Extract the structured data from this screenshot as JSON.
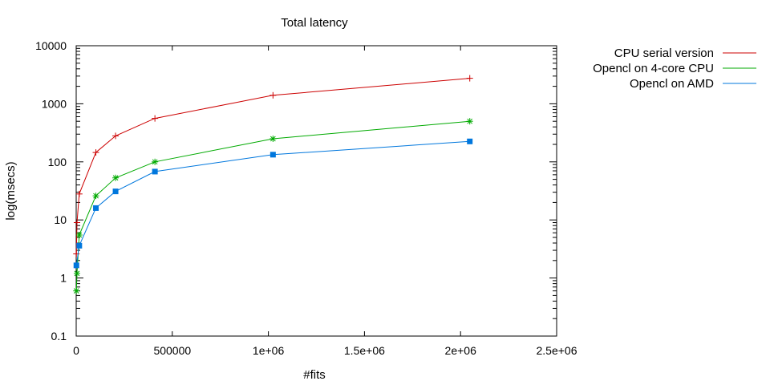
{
  "chart_data": {
    "type": "line",
    "title": "Total latency",
    "xlabel": "#fits",
    "ylabel": "log(msecs)",
    "xlim": [
      0,
      2500000
    ],
    "ylim": [
      0.1,
      10000
    ],
    "y_scale": "log",
    "grid": false,
    "legend_position": "top-right, outside plot",
    "x_ticks": [
      {
        "value": 0,
        "label": "0"
      },
      {
        "value": 500000,
        "label": "500000"
      },
      {
        "value": 1000000,
        "label": "1e+06"
      },
      {
        "value": 1500000,
        "label": "1.5e+06"
      },
      {
        "value": 2000000,
        "label": "2e+06"
      },
      {
        "value": 2500000,
        "label": "2.5e+06"
      }
    ],
    "y_ticks": [
      {
        "value": 0.1,
        "label": "0.1"
      },
      {
        "value": 1,
        "label": "1"
      },
      {
        "value": 10,
        "label": "10"
      },
      {
        "value": 100,
        "label": "100"
      },
      {
        "value": 1000,
        "label": "1000"
      },
      {
        "value": 10000,
        "label": "10000"
      }
    ],
    "series": [
      {
        "name": "CPU serial version",
        "color": "#cc0000",
        "marker": "plus",
        "x": [
          1000,
          4000,
          16000,
          102400,
          204800,
          409600,
          1024000,
          2048000
        ],
        "y": [
          2.6,
          9.0,
          28,
          145,
          280,
          560,
          1400,
          2750
        ]
      },
      {
        "name": "Opencl on 4-core CPU",
        "color": "#00aa00",
        "marker": "asterisk",
        "x": [
          1000,
          4000,
          16000,
          102400,
          204800,
          409600,
          1024000,
          2048000
        ],
        "y": [
          0.6,
          1.2,
          5.5,
          26,
          53,
          100,
          250,
          500
        ]
      },
      {
        "name": "Opencl on AMD",
        "color": "#0077dd",
        "marker": "square",
        "x": [
          1000,
          16000,
          102400,
          204800,
          409600,
          1024000,
          2048000
        ],
        "y": [
          1.65,
          3.6,
          16,
          31,
          68,
          133,
          225
        ]
      }
    ]
  }
}
